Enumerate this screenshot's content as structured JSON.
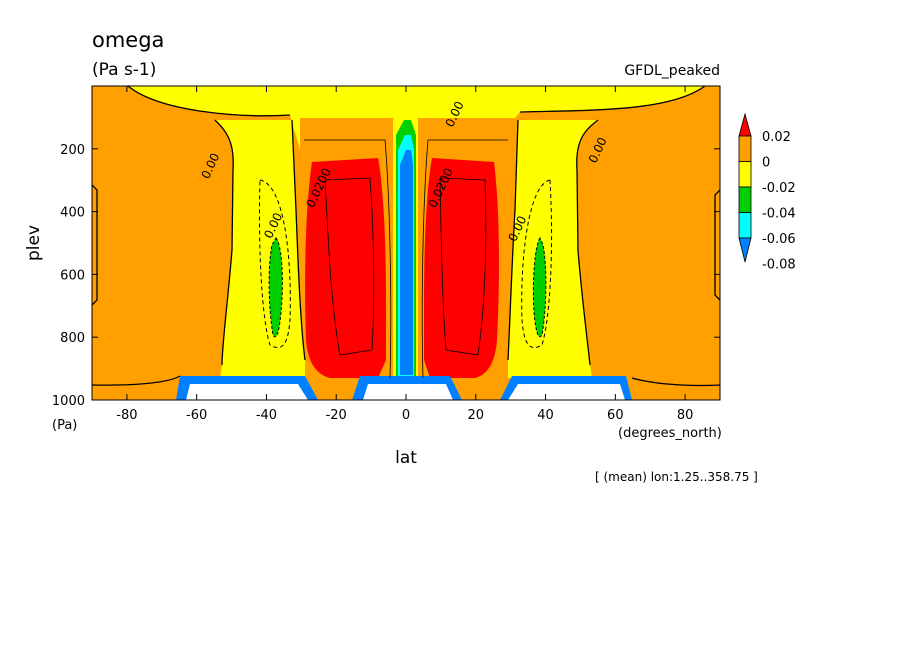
{
  "chart_data": {
    "type": "heatmap",
    "title": "omega",
    "subtitle": "(Pa s-1)",
    "dataset_label": "GFDL_peaked",
    "ylabel": "plev",
    "yunit": "(Pa)",
    "xlabel": "lat",
    "xunit": "(degrees_north)",
    "footnote": "[ (mean) lon:1.25..358.75 ]",
    "xlim": [
      -90,
      90
    ],
    "ylim": [
      1000,
      0
    ],
    "xticks": [
      -80,
      -60,
      -40,
      -20,
      0,
      20,
      40,
      60,
      80
    ],
    "yticks": [
      200,
      400,
      600,
      800,
      1000
    ],
    "colorbar": {
      "levels": [
        "0.02",
        "0",
        "-0.02",
        "-0.04",
        "-0.06",
        "-0.08"
      ],
      "colors": [
        "#ff0000",
        "#ff9f00",
        "#ffff00",
        "#00d000",
        "#00ffff",
        "#0080ff"
      ],
      "extend": "both"
    },
    "contour_labels": [
      {
        "text": "0.00",
        "lon": 15,
        "plev": 95
      },
      {
        "text": "0.00",
        "lon": -55,
        "plev": 260
      },
      {
        "text": "0.00",
        "lon": 56,
        "plev": 210
      },
      {
        "text": "0.00",
        "lon": -37,
        "plev": 450
      },
      {
        "text": "0.00",
        "lon": 33,
        "plev": 460
      },
      {
        "text": "0.0200",
        "lon": -24,
        "plev": 330
      },
      {
        "text": "0.0200",
        "lon": 11,
        "plev": 330
      }
    ]
  }
}
